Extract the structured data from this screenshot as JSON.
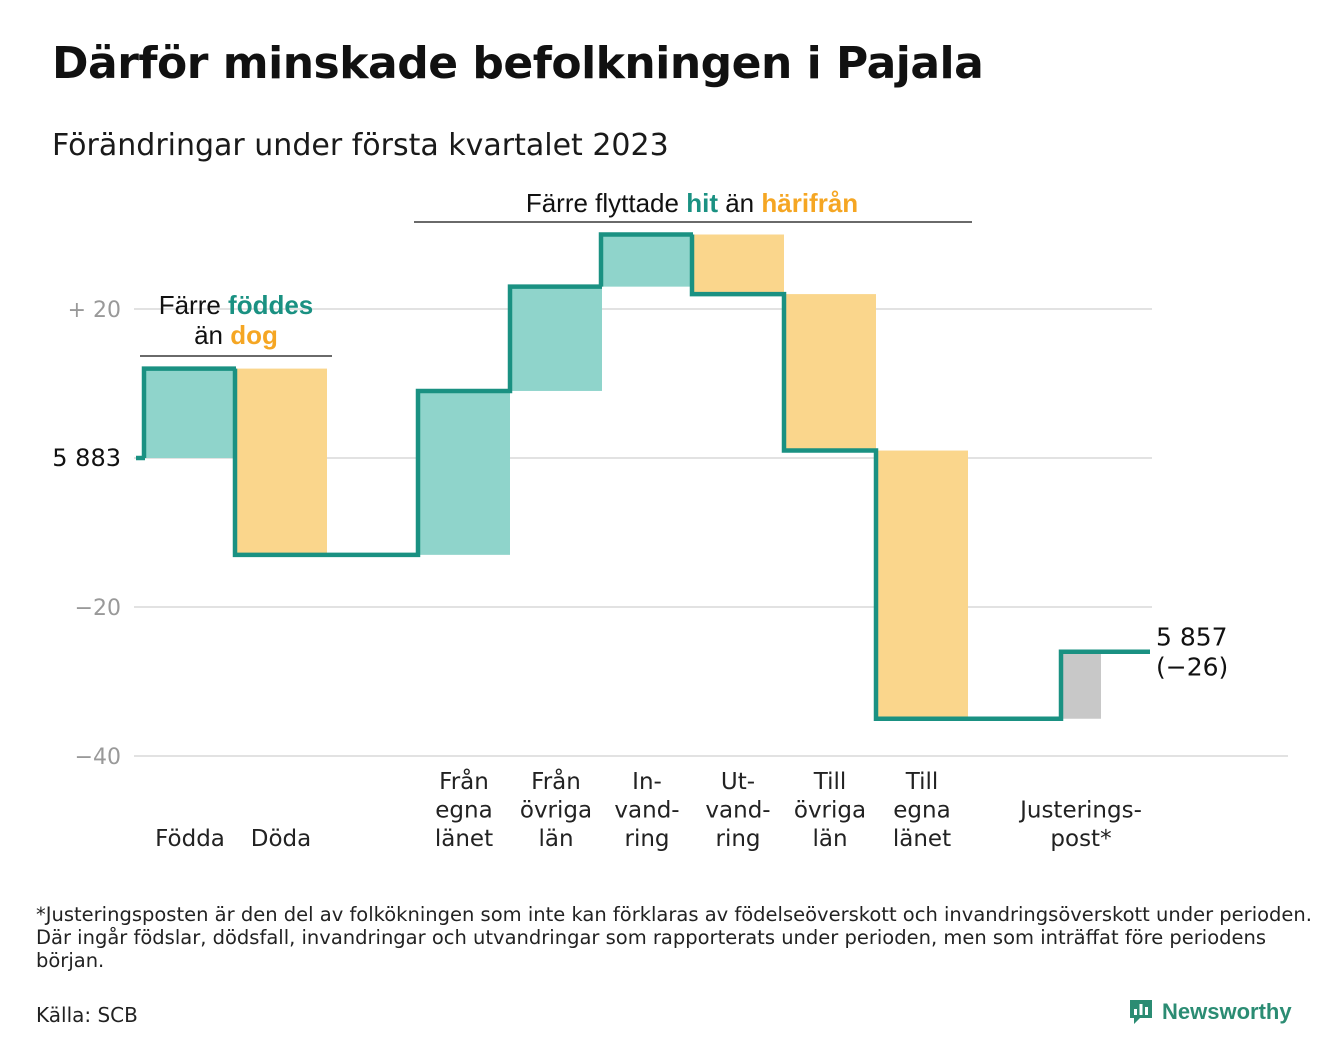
{
  "title": "Därför minskade befolkningen i Pajala",
  "subtitle": "Förändringar under första kvartalet 2023",
  "colors": {
    "inflow": "#8fd4cb",
    "outflow": "#fad68c",
    "adjustment": "#c8c8c8",
    "line": "#1a9182",
    "highlight_teal": "#1a9182",
    "highlight_orange": "#f5a623",
    "grid": "#e2e2e2"
  },
  "chart_data": {
    "type": "waterfall",
    "start_value": 5883,
    "start_label": "5 883",
    "end_value": 5857,
    "end_label": "5 857",
    "end_change_label": "(−26)",
    "ylim": [
      -40,
      20
    ],
    "y_ticks": [
      {
        "value": 20,
        "label": "+ 20"
      },
      {
        "value": 0,
        "label": ""
      },
      {
        "value": -20,
        "label": "−20"
      },
      {
        "value": -40,
        "label": "−40"
      }
    ],
    "steps": [
      {
        "category": "Födda",
        "lines": [
          "Födda"
        ],
        "change": 12,
        "kind": "inflow",
        "group": 1
      },
      {
        "category": "Döda",
        "lines": [
          "Döda"
        ],
        "change": -25,
        "kind": "outflow",
        "group": 1
      },
      {
        "category": "Från egna länet",
        "lines": [
          "Från",
          "egna",
          "länet"
        ],
        "change": 22,
        "kind": "inflow",
        "group": 2
      },
      {
        "category": "Från övriga län",
        "lines": [
          "Från",
          "övriga",
          "län"
        ],
        "change": 14,
        "kind": "inflow",
        "group": 2
      },
      {
        "category": "Invandring",
        "lines": [
          "In-",
          "vand-",
          "ring"
        ],
        "change": 7,
        "kind": "inflow",
        "group": 2
      },
      {
        "category": "Utvandring",
        "lines": [
          "Ut-",
          "vand-",
          "ring"
        ],
        "change": -8,
        "kind": "outflow",
        "group": 2
      },
      {
        "category": "Till övriga län",
        "lines": [
          "Till",
          "övriga",
          "län"
        ],
        "change": -21,
        "kind": "outflow",
        "group": 2
      },
      {
        "category": "Till egna länet",
        "lines": [
          "Till",
          "egna",
          "länet"
        ],
        "change": -36,
        "kind": "outflow",
        "group": 2
      },
      {
        "category": "Justeringspost*",
        "lines": [
          "Justerings-",
          "post*"
        ],
        "change": 9,
        "kind": "adjustment",
        "group": 3
      }
    ],
    "annotations": [
      {
        "parts": [
          [
            "Färre ",
            "plain"
          ],
          [
            "föddes",
            "teal"
          ]
        ],
        "parts2": [
          [
            "än ",
            "plain"
          ],
          [
            "dog",
            "orange"
          ]
        ]
      },
      {
        "parts": [
          [
            "Färre flyttade ",
            "plain"
          ],
          [
            "hit",
            "teal"
          ],
          [
            " än ",
            "plain"
          ],
          [
            "härifrån",
            "orange"
          ]
        ]
      }
    ]
  },
  "footnote": "*Justeringsposten är den del av folkökningen som inte kan förklaras av födelseöverskott och invandringsöverskott under perioden. Där ingår födslar, dödsfall, invandringar och utvandringar som rapporterats under perioden, men som inträffat före periodens början.",
  "source": "Källa: SCB",
  "brand": "Newsworthy",
  "brand_icon": "bar-chart-logo-icon"
}
